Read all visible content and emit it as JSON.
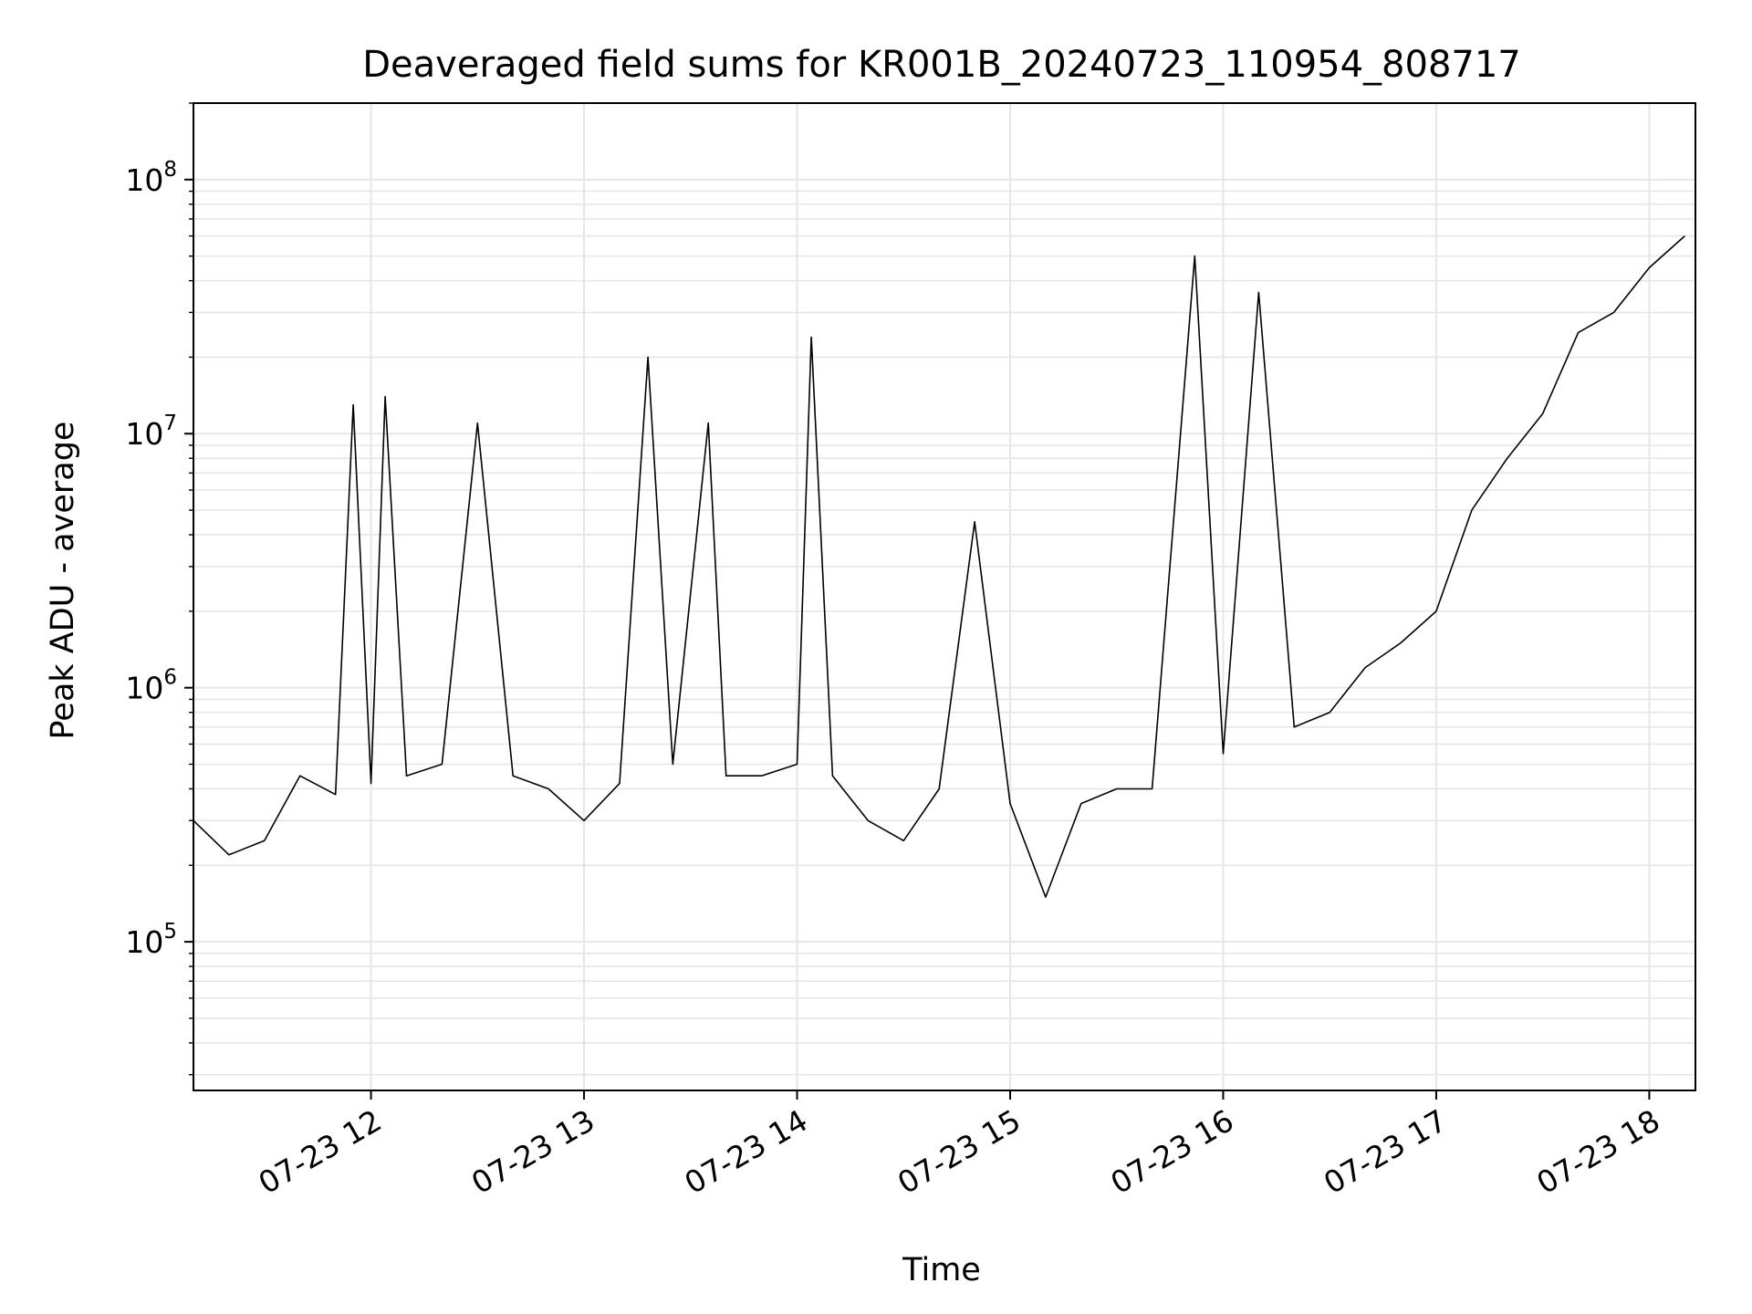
{
  "chart_data": {
    "type": "line",
    "title": "Deaveraged field sums for KR001B_20240723_110954_808717",
    "xlabel": "Time",
    "ylabel": "Peak ADU - average",
    "x_range": [
      "07-23 11:10",
      "07-23 18:13"
    ],
    "y_range": [
      26000,
      200000000
    ],
    "y_scale": "log",
    "grid": true,
    "line_color": "#000000",
    "grid_color": "#e6e6e6",
    "x_ticks": [
      {
        "label": "07-23 12",
        "time": "07-23 12:00"
      },
      {
        "label": "07-23 13",
        "time": "07-23 13:00"
      },
      {
        "label": "07-23 14",
        "time": "07-23 14:00"
      },
      {
        "label": "07-23 15",
        "time": "07-23 15:00"
      },
      {
        "label": "07-23 16",
        "time": "07-23 16:00"
      },
      {
        "label": "07-23 17",
        "time": "07-23 17:00"
      },
      {
        "label": "07-23 18",
        "time": "07-23 18:00"
      }
    ],
    "y_ticks": [
      {
        "base": "10",
        "exp": "5",
        "value": 100000
      },
      {
        "base": "10",
        "exp": "6",
        "value": 1000000
      },
      {
        "base": "10",
        "exp": "7",
        "value": 10000000
      },
      {
        "base": "10",
        "exp": "8",
        "value": 100000000
      }
    ],
    "series": [
      {
        "x": [
          "07-23 11:10",
          "07-23 11:20",
          "07-23 11:30",
          "07-23 11:40",
          "07-23 11:50",
          "07-23 11:55",
          "07-23 12:00",
          "07-23 12:04",
          "07-23 12:10",
          "07-23 12:20",
          "07-23 12:30",
          "07-23 12:40",
          "07-23 12:50",
          "07-23 13:00",
          "07-23 13:10",
          "07-23 13:18",
          "07-23 13:25",
          "07-23 13:35",
          "07-23 13:40",
          "07-23 13:50",
          "07-23 14:00",
          "07-23 14:04",
          "07-23 14:10",
          "07-23 14:20",
          "07-23 14:30",
          "07-23 14:40",
          "07-23 14:50",
          "07-23 15:00",
          "07-23 15:10",
          "07-23 15:20",
          "07-23 15:30",
          "07-23 15:40",
          "07-23 15:52",
          "07-23 16:00",
          "07-23 16:10",
          "07-23 16:20",
          "07-23 16:30",
          "07-23 16:40",
          "07-23 16:50",
          "07-23 17:00",
          "07-23 17:10",
          "07-23 17:20",
          "07-23 17:30",
          "07-23 17:40",
          "07-23 17:50",
          "07-23 18:00",
          "07-23 18:10"
        ],
        "y": [
          300000,
          220000,
          250000,
          450000,
          380000,
          13000000,
          420000,
          14000000,
          450000,
          500000,
          11000000,
          450000,
          400000,
          300000,
          420000,
          20000000,
          500000,
          11000000,
          450000,
          450000,
          500000,
          24000000,
          450000,
          300000,
          250000,
          400000,
          4500000,
          350000,
          150000,
          350000,
          400000,
          400000,
          50000000,
          550000,
          36000000,
          700000,
          800000,
          1200000,
          1500000,
          2000000,
          5000000,
          8000000,
          12000000,
          25000000,
          30000000,
          45000000,
          60000000
        ]
      }
    ]
  }
}
